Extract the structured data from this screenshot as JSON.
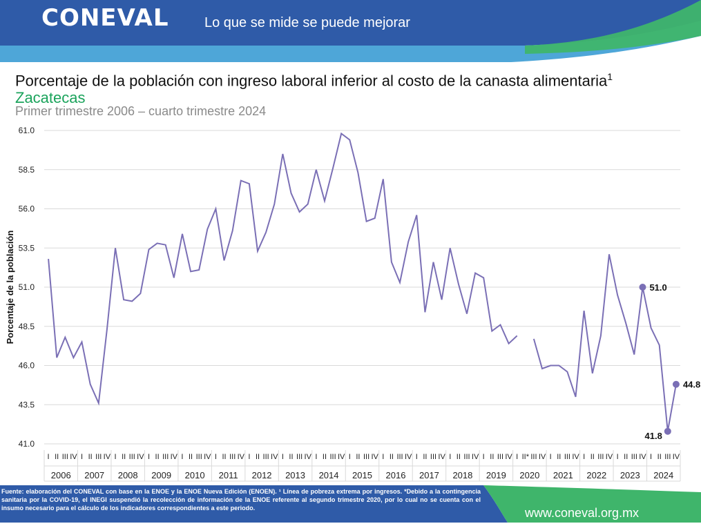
{
  "header": {
    "logo_text": "CONEVAL",
    "tagline": "Lo que se mide se puede mejorar",
    "colors": {
      "blue": "#2f5ba8",
      "light_blue": "#4ea6d8",
      "green": "#3fb56b"
    }
  },
  "title_text": "Porcentaje de la población con ingreso laboral inferior al costo de la canasta alimentaria",
  "title_sup": "1",
  "subtitle": "Zacatecas",
  "period": "Primer trimestre 2006 – cuarto trimestre 2024",
  "footer": {
    "footnote": "Fuente: elaboración del CONEVAL con base en la ENOE y la ENOE Nueva Edición (ENOEN). ¹ Línea de pobreza extrema por ingresos. *Debido a la contingencia sanitaria por la COVID-19, el INEGI suspendió la recolección de información de la ENOE referente al segundo trimestre 2020, por lo cual no se cuenta con el insumo necesario para el cálculo de los indicadores correspondientes a este periodo.",
    "website": "www.coneval.org.mx"
  },
  "chart_data": {
    "type": "line",
    "ylabel": "Porcentaje de la población",
    "ylim": [
      41.0,
      61.0
    ],
    "yticks": [
      "61.0",
      "58.5",
      "56.0",
      "53.5",
      "51.0",
      "48.5",
      "46.0",
      "43.5",
      "41.0"
    ],
    "grid": true,
    "line_color": "#7a6fb5",
    "years": [
      "2006",
      "2007",
      "2008",
      "2009",
      "2010",
      "2011",
      "2012",
      "2013",
      "2014",
      "2015",
      "2016",
      "2017",
      "2018",
      "2019",
      "2020",
      "2021",
      "2022",
      "2023",
      "2024"
    ],
    "quarter_labels": [
      "I",
      "II",
      "III",
      "IV"
    ],
    "quarter_labels_2020": [
      "I",
      "II*",
      "III",
      "IV"
    ],
    "values": [
      52.8,
      46.5,
      47.8,
      46.5,
      47.5,
      44.8,
      43.6,
      48.3,
      53.5,
      50.2,
      50.1,
      50.6,
      53.4,
      53.8,
      53.7,
      51.6,
      54.4,
      52.0,
      52.1,
      54.7,
      56.0,
      52.7,
      54.6,
      57.8,
      57.6,
      53.3,
      54.5,
      56.3,
      59.5,
      57.0,
      55.8,
      56.3,
      58.5,
      56.5,
      58.6,
      60.8,
      60.4,
      58.3,
      55.2,
      55.4,
      57.9,
      52.6,
      51.3,
      53.9,
      55.6,
      49.4,
      52.6,
      50.2,
      53.5,
      51.2,
      49.3,
      51.9,
      51.6,
      48.2,
      48.6,
      47.4,
      47.9,
      null,
      47.7,
      45.8,
      46.0,
      46.0,
      45.6,
      44.0,
      49.5,
      45.5,
      47.9,
      53.1,
      50.5,
      48.7,
      46.7,
      51.0,
      48.4,
      47.3,
      41.8,
      44.8
    ],
    "highlighted": [
      {
        "index": 71,
        "label": "51.0"
      },
      {
        "index": 74,
        "label": "41.8"
      },
      {
        "index": 75,
        "label": "44.8"
      }
    ]
  }
}
